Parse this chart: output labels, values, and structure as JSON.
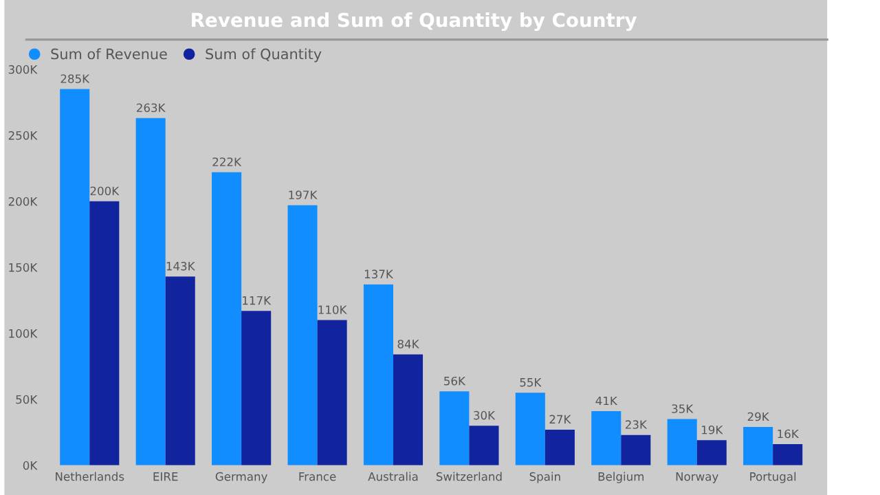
{
  "chart_data": {
    "type": "bar",
    "title": "Revenue and Sum of Quantity by Country",
    "categories": [
      "Netherlands",
      "EIRE",
      "Germany",
      "France",
      "Australia",
      "Switzerland",
      "Spain",
      "Belgium",
      "Norway",
      "Portugal"
    ],
    "series": [
      {
        "name": "Sum of Revenue",
        "color": "#118dff",
        "values": [
          285000,
          263000,
          222000,
          197000,
          137000,
          56000,
          55000,
          41000,
          35000,
          29000
        ],
        "value_labels": [
          "285K",
          "263K",
          "222K",
          "197K",
          "137K",
          "56K",
          "55K",
          "41K",
          "35K",
          "29K"
        ]
      },
      {
        "name": "Sum of Quantity",
        "color": "#12239e",
        "values": [
          200000,
          143000,
          117000,
          110000,
          84000,
          30000,
          27000,
          23000,
          19000,
          16000
        ],
        "value_labels": [
          "200K",
          "143K",
          "117K",
          "110K",
          "84K",
          "30K",
          "27K",
          "23K",
          "19K",
          "16K"
        ]
      }
    ],
    "ylim": [
      0,
      300000
    ],
    "yticks": [
      {
        "value": 0,
        "label": "0K"
      },
      {
        "value": 50000,
        "label": "50K"
      },
      {
        "value": 100000,
        "label": "100K"
      },
      {
        "value": 150000,
        "label": "150K"
      },
      {
        "value": 200000,
        "label": "200K"
      },
      {
        "value": 250000,
        "label": "250K"
      },
      {
        "value": 300000,
        "label": "300K"
      }
    ],
    "legend": "top left",
    "grid": false
  }
}
